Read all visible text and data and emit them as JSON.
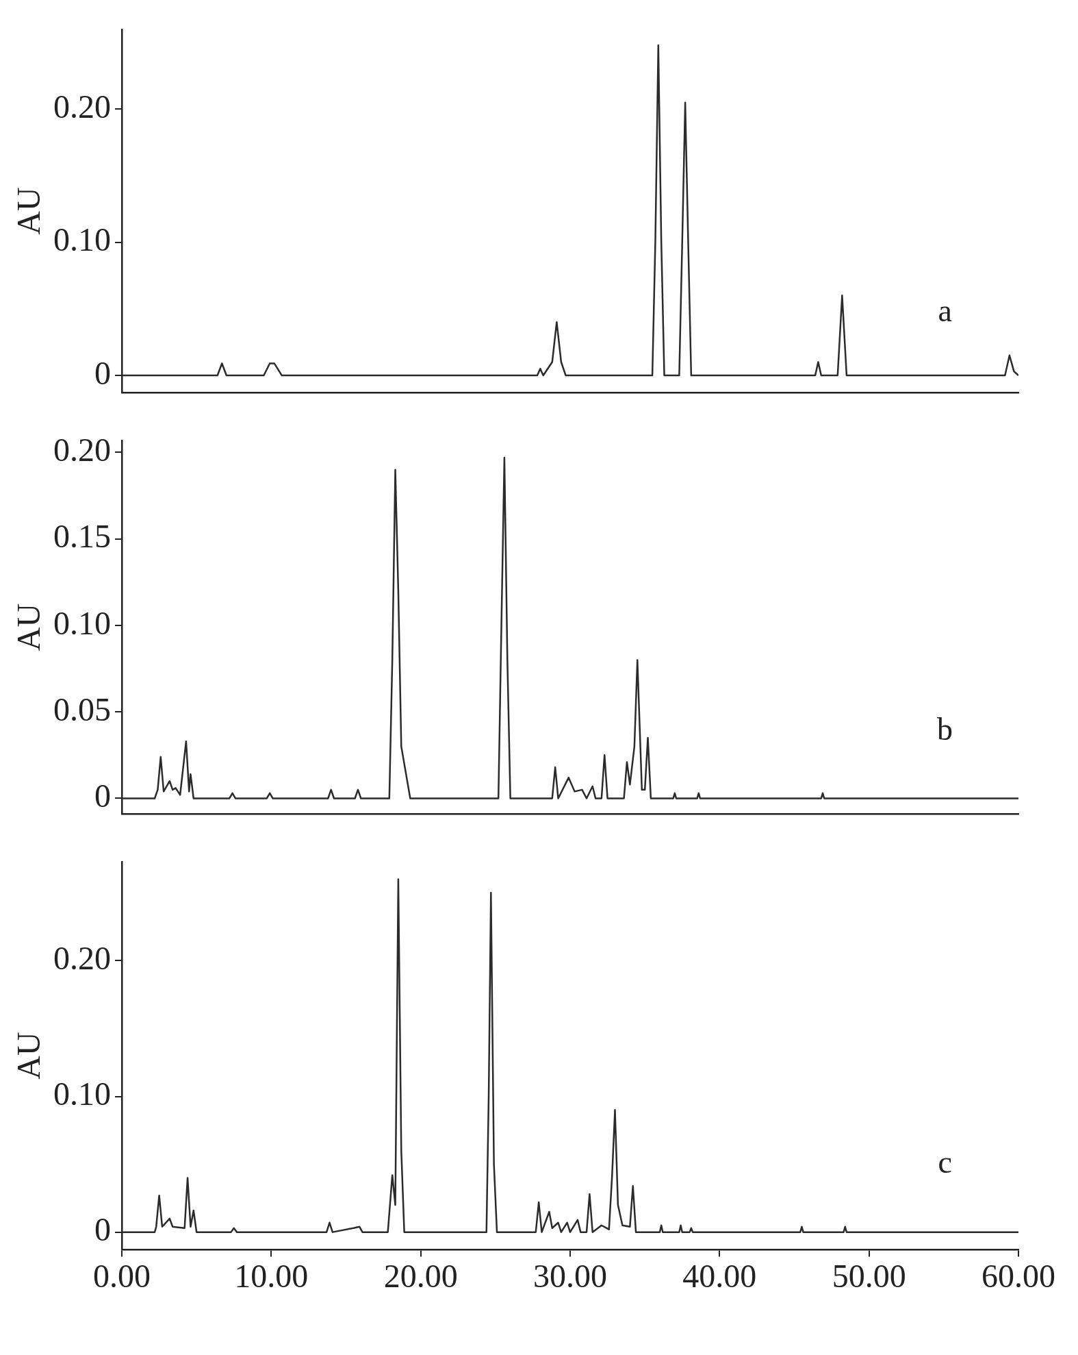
{
  "chart_data": [
    {
      "type": "line",
      "ylabel": "AU",
      "color": "#2b2b2b",
      "marker": "none",
      "line_style": "solid",
      "grid": false,
      "legend": false,
      "tick_labels": "y",
      "annotations": [
        "a"
      ],
      "xlim": [
        0,
        60
      ],
      "ylim": [
        -0.013,
        0.26
      ],
      "yticks": [
        {
          "value": 0,
          "label": "0"
        },
        {
          "value": 0.1,
          "label": "0.10"
        },
        {
          "value": 0.2,
          "label": "0.20"
        }
      ],
      "x": [
        0,
        6.4,
        6.7,
        7.0,
        9.5,
        9.9,
        10.2,
        10.7,
        27.8,
        28.0,
        28.2,
        28.8,
        29.1,
        29.4,
        29.7,
        35.5,
        35.7,
        35.9,
        36.1,
        36.3,
        37.3,
        37.5,
        37.7,
        37.9,
        38.1,
        46.4,
        46.6,
        46.8,
        47.9,
        48.2,
        48.5,
        59.1,
        59.4,
        59.7,
        60
      ],
      "values": [
        0,
        0,
        0.009,
        0,
        0,
        0.009,
        0.009,
        0,
        0,
        0.005,
        0,
        0.01,
        0.04,
        0.01,
        0,
        0,
        0.1,
        0.248,
        0.1,
        0,
        0,
        0.1,
        0.205,
        0.1,
        0,
        0,
        0.01,
        0,
        0,
        0.06,
        0,
        0,
        0.015,
        0.003,
        0
      ]
    },
    {
      "type": "line",
      "ylabel": "AU",
      "color": "#2b2b2b",
      "marker": "none",
      "line_style": "solid",
      "grid": false,
      "legend": false,
      "tick_labels": "y",
      "annotations": [
        "b"
      ],
      "xlim": [
        0,
        60
      ],
      "ylim": [
        -0.009,
        0.207
      ],
      "yticks": [
        {
          "value": 0,
          "label": "0"
        },
        {
          "value": 0.05,
          "label": "0.05"
        },
        {
          "value": 0.1,
          "label": "0.10"
        },
        {
          "value": 0.15,
          "label": "0.15"
        },
        {
          "value": 0.2,
          "label": "0.20"
        }
      ],
      "x": [
        0,
        2.2,
        2.4,
        2.6,
        2.8,
        3.2,
        3.4,
        3.6,
        3.9,
        4.3,
        4.5,
        4.6,
        4.8,
        7.2,
        7.4,
        7.6,
        9.7,
        9.9,
        10.1,
        13.8,
        14.0,
        14.2,
        15.6,
        15.8,
        16.0,
        17.9,
        18.1,
        18.3,
        18.5,
        18.7,
        19.0,
        19.3,
        25.2,
        25.4,
        25.6,
        25.8,
        26.0,
        28.8,
        29.0,
        29.2,
        29.9,
        30.3,
        30.8,
        31.1,
        31.5,
        31.7,
        32.1,
        32.3,
        32.5,
        33.6,
        33.8,
        34.0,
        34.3,
        34.5,
        34.8,
        35.0,
        35.2,
        35.4,
        36.9,
        37.0,
        37.1,
        38.5,
        38.6,
        38.7,
        46.8,
        46.9,
        47.0,
        60
      ],
      "values": [
        0,
        0,
        0.005,
        0.024,
        0.004,
        0.01,
        0.005,
        0.006,
        0.002,
        0.033,
        0.004,
        0.014,
        0,
        0,
        0.003,
        0,
        0,
        0.003,
        0,
        0,
        0.005,
        0,
        0,
        0.005,
        0,
        0,
        0.08,
        0.19,
        0.12,
        0.03,
        0.015,
        0,
        0,
        0.1,
        0.197,
        0.08,
        0,
        0,
        0.018,
        0,
        0.012,
        0.004,
        0.005,
        0,
        0.007,
        0,
        0,
        0.025,
        0,
        0,
        0.021,
        0.008,
        0.03,
        0.08,
        0.005,
        0.005,
        0.035,
        0,
        0,
        0.003,
        0,
        0,
        0.003,
        0,
        0,
        0.003,
        0,
        0
      ]
    },
    {
      "type": "line",
      "ylabel": "AU",
      "color": "#2b2b2b",
      "marker": "none",
      "line_style": "solid",
      "grid": false,
      "legend": false,
      "annotations": [
        "c"
      ],
      "xlim": [
        0,
        60
      ],
      "xticks": [
        {
          "value": 0,
          "label": "0.00"
        },
        {
          "value": 10,
          "label": "10.00"
        },
        {
          "value": 20,
          "label": "20.00"
        },
        {
          "value": 30,
          "label": "30.00"
        },
        {
          "value": 40,
          "label": "40.00"
        },
        {
          "value": 50,
          "label": "50.00"
        },
        {
          "value": 60,
          "label": "60.00"
        }
      ],
      "ylim": [
        -0.013,
        0.273
      ],
      "yticks": [
        {
          "value": 0,
          "label": "0"
        },
        {
          "value": 0.1,
          "label": "0.10"
        },
        {
          "value": 0.2,
          "label": "0.20"
        }
      ],
      "x": [
        0,
        2.2,
        2.3,
        2.5,
        2.7,
        3.2,
        3.4,
        4.2,
        4.4,
        4.6,
        4.8,
        5.0,
        7.3,
        7.5,
        7.7,
        13.7,
        13.9,
        14.1,
        15.5,
        15.9,
        16.1,
        17.8,
        18.1,
        18.3,
        18.5,
        18.7,
        18.9,
        24.4,
        24.55,
        24.7,
        24.9,
        25.1,
        27.7,
        27.9,
        28.1,
        28.6,
        28.8,
        29.2,
        29.4,
        29.8,
        30.0,
        30.5,
        30.7,
        31.1,
        31.3,
        31.5,
        32.1,
        32.6,
        32.8,
        33.0,
        33.2,
        33.5,
        34.0,
        34.2,
        34.4,
        36.0,
        36.1,
        36.2,
        37.3,
        37.4,
        37.5,
        38.0,
        38.1,
        38.2,
        45.4,
        45.5,
        45.6,
        48.3,
        48.4,
        48.5,
        60
      ],
      "values": [
        0,
        0,
        0.004,
        0.027,
        0.004,
        0.01,
        0.004,
        0.003,
        0.04,
        0.004,
        0.016,
        0,
        0,
        0.003,
        0,
        0,
        0.007,
        0,
        0.003,
        0.004,
        0,
        0,
        0.042,
        0.02,
        0.26,
        0.06,
        0,
        0,
        0.1,
        0.25,
        0.05,
        0,
        0,
        0.022,
        0,
        0.015,
        0.003,
        0.007,
        0,
        0.007,
        0,
        0.009,
        0,
        0,
        0.028,
        0,
        0.005,
        0.002,
        0.04,
        0.09,
        0.02,
        0.005,
        0.004,
        0.034,
        0,
        0,
        0.005,
        0,
        0,
        0.005,
        0,
        0,
        0.003,
        0,
        0,
        0.004,
        0,
        0,
        0.004,
        0,
        0
      ]
    }
  ]
}
